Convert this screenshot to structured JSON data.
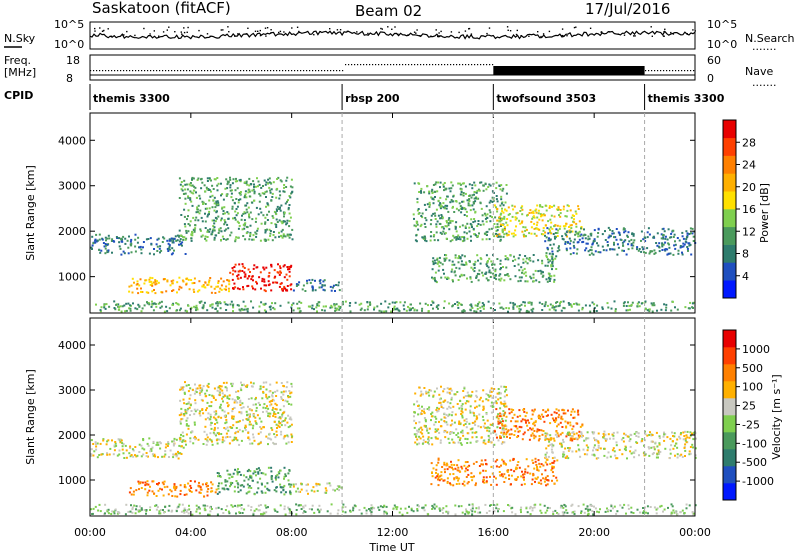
{
  "header": {
    "site": "Saskatoon (fitACF)",
    "beam": "Beam 02",
    "date": "17/Jul/2016"
  },
  "summary": {
    "nsky_label": "N.Sky",
    "nsearch_label": "N.Search",
    "freq_label_line1": "Freq.",
    "freq_label_line2": "[MHz]",
    "nave_label": "Nave",
    "cpid_label": "CPID",
    "count_tick_high": "10^5",
    "count_tick_low": "10^0",
    "freq_ticks": [
      "18",
      "8"
    ],
    "nave_ticks": [
      "60",
      "0"
    ],
    "legend_dots": "......."
  },
  "cpid_modes": [
    {
      "name": "themis 3300",
      "start_hour": 0
    },
    {
      "name": "rbsp 200",
      "start_hour": 10
    },
    {
      "name": "twofsound 3503",
      "start_hour": 16
    },
    {
      "name": "themis 3300",
      "start_hour": 22
    }
  ],
  "chart_data": [
    {
      "type": "heatmap",
      "panel": "power",
      "xlabel": "Time UT",
      "ylabel": "Slant Range [km]",
      "x_ticks": [
        "00:00",
        "04:00",
        "08:00",
        "12:00",
        "16:00",
        "20:00",
        "00:00"
      ],
      "x_tick_hours": [
        0,
        4,
        8,
        12,
        16,
        20,
        24
      ],
      "xlim": [
        0,
        24
      ],
      "ylim": [
        200,
        4600
      ],
      "y_ticks": [
        1000,
        2000,
        3000,
        4000
      ],
      "colorbar": {
        "label": "Power [dB]",
        "ticks": [
          "4",
          "8",
          "12",
          "16",
          "20",
          "24",
          "28"
        ],
        "colors": [
          "#0018ff",
          "#1f4fbf",
          "#2e7c6d",
          "#4a9a5c",
          "#7fcf4f",
          "#ffe000",
          "#ffb000",
          "#ff8000",
          "#ff4000",
          "#e80000"
        ]
      },
      "scatter_regions": [
        {
          "t0": 0.0,
          "t1": 3.8,
          "r0": 1500,
          "r1": 1950,
          "level": 2
        },
        {
          "t0": 3.5,
          "t1": 8.0,
          "r0": 1800,
          "r1": 3200,
          "level": 3
        },
        {
          "t0": 1.5,
          "t1": 5.5,
          "r0": 650,
          "r1": 1000,
          "level": 6
        },
        {
          "t0": 5.5,
          "t1": 8.0,
          "r0": 700,
          "r1": 1300,
          "level": 9
        },
        {
          "t0": 8.0,
          "t1": 10.0,
          "r0": 700,
          "r1": 950,
          "level": 2
        },
        {
          "t0": 0.0,
          "t1": 24.0,
          "r0": 250,
          "r1": 480,
          "level": 3
        },
        {
          "t0": 12.8,
          "t1": 16.5,
          "r0": 1800,
          "r1": 3100,
          "level": 3
        },
        {
          "t0": 13.5,
          "t1": 18.5,
          "r0": 900,
          "r1": 1500,
          "level": 3
        },
        {
          "t0": 16.0,
          "t1": 19.5,
          "r0": 1900,
          "r1": 2600,
          "level": 5
        },
        {
          "t0": 18.0,
          "t1": 24.0,
          "r0": 1500,
          "r1": 2100,
          "level": 2
        }
      ]
    },
    {
      "type": "heatmap",
      "panel": "velocity",
      "xlabel": "Time UT",
      "ylabel": "Slant Range [km]",
      "x_ticks": [
        "00:00",
        "04:00",
        "08:00",
        "12:00",
        "16:00",
        "20:00",
        "00:00"
      ],
      "x_tick_hours": [
        0,
        4,
        8,
        12,
        16,
        20,
        24
      ],
      "xlim": [
        0,
        24
      ],
      "ylim": [
        200,
        4600
      ],
      "y_ticks": [
        1000,
        2000,
        3000,
        4000
      ],
      "colorbar": {
        "label": "Velocity [m s⁻¹]",
        "ticks": [
          "1000",
          "500",
          "100",
          "25",
          "-25",
          "-100",
          "-500",
          "-1000"
        ],
        "colors": [
          "#0018ff",
          "#1f4fbf",
          "#2e7c6d",
          "#4a9a5c",
          "#7fcf4f",
          "#c8c8c0",
          "#ffb000",
          "#ff8000",
          "#ff4000",
          "#e80000"
        ]
      },
      "scatter_regions": [
        {
          "t0": 0.0,
          "t1": 3.8,
          "r0": 1500,
          "r1": 1950,
          "level": 5
        },
        {
          "t0": 3.5,
          "t1": 8.0,
          "r0": 1800,
          "r1": 3200,
          "level": 5
        },
        {
          "t0": 1.5,
          "t1": 5.0,
          "r0": 650,
          "r1": 1000,
          "level": 7
        },
        {
          "t0": 5.0,
          "t1": 8.0,
          "r0": 700,
          "r1": 1300,
          "level": 3
        },
        {
          "t0": 8.0,
          "t1": 10.0,
          "r0": 700,
          "r1": 950,
          "level": 5
        },
        {
          "t0": 0.0,
          "t1": 24.0,
          "r0": 250,
          "r1": 480,
          "level": 4
        },
        {
          "t0": 12.8,
          "t1": 16.5,
          "r0": 1800,
          "r1": 3100,
          "level": 5
        },
        {
          "t0": 13.5,
          "t1": 18.5,
          "r0": 900,
          "r1": 1500,
          "level": 7
        },
        {
          "t0": 16.0,
          "t1": 19.5,
          "r0": 1900,
          "r1": 2600,
          "level": 7
        },
        {
          "t0": 18.0,
          "t1": 24.0,
          "r0": 1500,
          "r1": 2100,
          "level": 5
        }
      ]
    }
  ]
}
